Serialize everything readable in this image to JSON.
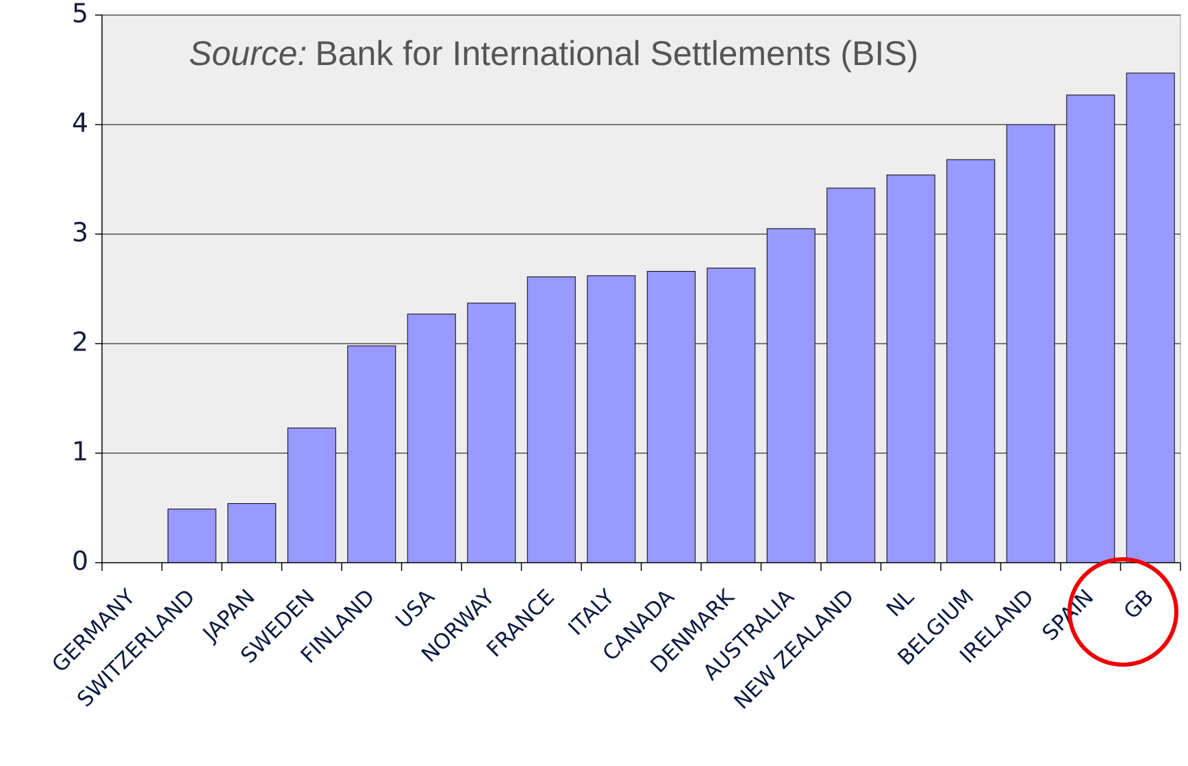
{
  "chart_data": {
    "type": "bar",
    "annotation": {
      "label": "Source:",
      "text": "Bank for International Settlements (BIS)"
    },
    "categories": [
      "GERMANY",
      "SWITZERLAND",
      "JAPAN",
      "SWEDEN",
      "FINLAND",
      "USA",
      "NORWAY",
      "FRANCE",
      "ITALY",
      "CANADA",
      "DENMARK",
      "AUSTRALIA",
      "NEW ZEALAND",
      "NL",
      "BELGIUM",
      "IRELAND",
      "SPAIN",
      "GB"
    ],
    "values": [
      0,
      0.49,
      0.54,
      1.23,
      1.98,
      2.27,
      2.37,
      2.61,
      2.62,
      2.66,
      2.69,
      3.05,
      3.42,
      3.54,
      3.68,
      4.0,
      4.27,
      4.47
    ],
    "color": "#9999ff",
    "ylim": [
      0,
      5
    ],
    "yticks": [
      0,
      1,
      2,
      3,
      4,
      5
    ],
    "grid": true
  }
}
